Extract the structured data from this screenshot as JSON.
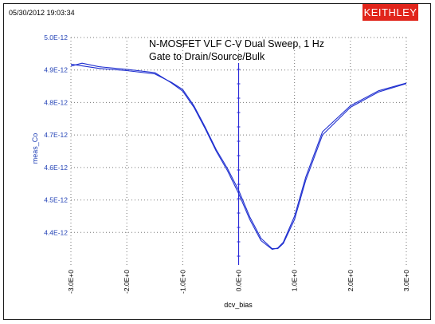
{
  "header": {
    "timestamp": "05/30/2012 19:03:34",
    "brand": "KEITHLEY"
  },
  "colors": {
    "brand_bg": "#e1251b",
    "brand_text": "#ffffff",
    "axis_text": "#1f3fb5",
    "curve": "#1f2fd0",
    "marker_line": "#2a2ad8",
    "grid": "#777777",
    "frame": "#1a1a1a"
  },
  "chart_data": {
    "type": "line",
    "title": "N-MOSFET VLF C-V Dual Sweep, 1 Hz",
    "subtitle": "Gate to Drain/Source/Bulk",
    "xlabel": "dcv_bias",
    "ylabel": "meas_Co",
    "xlim": [
      -3.0,
      3.0
    ],
    "ylim": [
      4.3e-12,
      5e-12
    ],
    "x_ticks": [
      -3.0,
      -2.0,
      -1.0,
      0.0,
      1.0,
      2.0,
      3.0
    ],
    "x_tick_labels": [
      "-3.0E+0",
      "-2.0E+0",
      "-1.0E+0",
      "0.0E+0",
      "1.0E+0",
      "2.0E+0",
      "3.0E+0"
    ],
    "y_ticks": [
      4.4e-12,
      4.5e-12,
      4.6e-12,
      4.7e-12,
      4.8e-12,
      4.9e-12,
      5e-12
    ],
    "y_tick_labels": [
      "4.4E-12",
      "4.5E-12",
      "4.6E-12",
      "4.7E-12",
      "4.8E-12",
      "4.9E-12",
      "5.0E-12"
    ],
    "grid": true,
    "series": [
      {
        "x": [
          -3.0,
          -2.8,
          -2.5,
          -2.0,
          -1.5,
          -1.2,
          -1.0,
          -0.8,
          -0.6,
          -0.4,
          -0.2,
          0.0,
          0.2,
          0.4,
          0.6,
          0.7,
          0.8,
          1.0,
          1.2,
          1.5,
          2.0,
          2.5,
          3.0
        ],
        "y": [
          4.912e-12,
          4.921e-12,
          4.91e-12,
          4.902e-12,
          4.892e-12,
          4.86e-12,
          4.835e-12,
          4.785e-12,
          4.72e-12,
          4.65e-12,
          4.59e-12,
          4.52e-12,
          4.44e-12,
          4.375e-12,
          4.348e-12,
          4.352e-12,
          4.37e-12,
          4.45e-12,
          4.57e-12,
          4.71e-12,
          4.79e-12,
          4.836e-12,
          4.86e-12
        ]
      },
      {
        "x": [
          -3.0,
          -2.5,
          -2.0,
          -1.5,
          -1.2,
          -1.0,
          -0.8,
          -0.6,
          -0.4,
          -0.2,
          0.0,
          0.2,
          0.4,
          0.6,
          0.7,
          0.8,
          1.0,
          1.2,
          1.5,
          2.0,
          2.5,
          3.0
        ],
        "y": [
          4.918e-12,
          4.905e-12,
          4.898e-12,
          4.888e-12,
          4.862e-12,
          4.84e-12,
          4.79e-12,
          4.725e-12,
          4.655e-12,
          4.597e-12,
          4.53e-12,
          4.448e-12,
          4.382e-12,
          4.35e-12,
          4.35e-12,
          4.366e-12,
          4.44e-12,
          4.56e-12,
          4.7e-12,
          4.785e-12,
          4.832e-12,
          4.858e-12
        ]
      }
    ],
    "vertical_marker_x": 0.0
  }
}
